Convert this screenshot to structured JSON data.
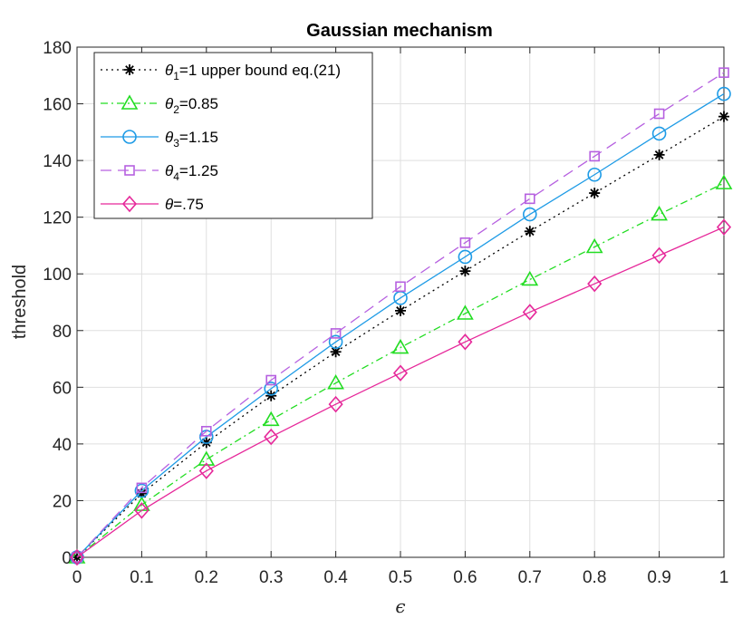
{
  "chart_data": {
    "type": "line",
    "title": "Gaussian mechanism",
    "xlabel": "ϵ",
    "ylabel": "threshold",
    "xlim": [
      0,
      1
    ],
    "ylim": [
      0,
      180
    ],
    "xticks": [
      "0",
      "0.1",
      "0.2",
      "0.3",
      "0.4",
      "0.5",
      "0.6",
      "0.7",
      "0.8",
      "0.9",
      "1"
    ],
    "yticks": [
      "0",
      "20",
      "40",
      "60",
      "80",
      "100",
      "120",
      "140",
      "160",
      "180"
    ],
    "grid": true,
    "legend_position": "top-left",
    "x": [
      0,
      0.1,
      0.2,
      0.3,
      0.4,
      0.5,
      0.6,
      0.7,
      0.8,
      0.9,
      1
    ],
    "series": [
      {
        "key": "s1",
        "legend": {
          "sym": "θ",
          "sub": "1",
          "rest": "=1 upper bound eq.(21)"
        },
        "color": "#000000",
        "dash": "2,4",
        "marker": "asterisk",
        "values": [
          0,
          22.5,
          40.5,
          57,
          72.5,
          87,
          101,
          115,
          128.5,
          142,
          155.5
        ]
      },
      {
        "key": "s2",
        "legend": {
          "sym": "θ",
          "sub": "2",
          "rest": "=0.85"
        },
        "color": "#22dd22",
        "dash": "8,4,2,4",
        "marker": "triangle",
        "values": [
          0,
          18.5,
          34.5,
          48.5,
          61.5,
          74,
          86,
          98,
          109.5,
          121,
          132
        ]
      },
      {
        "key": "s3",
        "legend": {
          "sym": "θ",
          "sub": "3",
          "rest": "=1.15"
        },
        "color": "#1e9be6",
        "dash": "",
        "marker": "circle",
        "values": [
          0,
          23.5,
          42.5,
          59.5,
          76,
          91.5,
          106,
          121,
          135,
          149.5,
          163.5
        ]
      },
      {
        "key": "s4",
        "legend": {
          "sym": "θ",
          "sub": "4",
          "rest": "=1.25"
        },
        "color": "#b660e0",
        "dash": "12,7",
        "marker": "square",
        "values": [
          0,
          24.5,
          44.5,
          62.5,
          79,
          95.5,
          111,
          126.5,
          141.5,
          156.5,
          171
        ]
      },
      {
        "key": "s5",
        "legend": {
          "sym": "θ",
          "sub": "",
          "rest": "=.75"
        },
        "color": "#e6289a",
        "dash": "",
        "marker": "diamond",
        "values": [
          0,
          16.5,
          30.5,
          42.5,
          54,
          65,
          76,
          86.5,
          96.5,
          106.5,
          116.5
        ]
      }
    ]
  }
}
